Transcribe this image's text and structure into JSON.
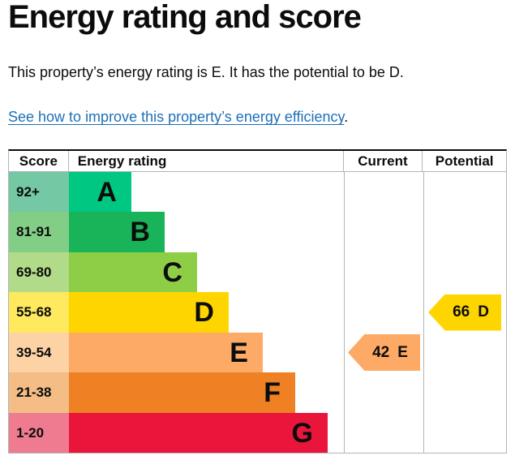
{
  "page": {
    "title": "Energy rating and score",
    "summary": "This property’s energy rating is E. It has the potential to be D.",
    "link_text": "See how to improve this property’s energy efficiency",
    "link_suffix": "."
  },
  "colors": {
    "text": "#0b0c0c",
    "link": "#1d70b8",
    "grid_line": "#b1b4b6"
  },
  "chart_data": {
    "type": "bar",
    "title": "Energy rating and score",
    "orientation": "horizontal",
    "columns": {
      "score": "Score",
      "rating": "Energy rating",
      "current": "Current",
      "potential": "Potential"
    },
    "bands": [
      {
        "score": "92+",
        "letter": "A",
        "bar_color": "#00c781",
        "score_bg": "#74c8a3",
        "bar_width_pct": 22.7
      },
      {
        "score": "81-91",
        "letter": "B",
        "bar_color": "#19b459",
        "score_bg": "#83ce86",
        "bar_width_pct": 34.8
      },
      {
        "score": "69-80",
        "letter": "C",
        "bar_color": "#8dce46",
        "score_bg": "#b1db89",
        "bar_width_pct": 46.6
      },
      {
        "score": "55-68",
        "letter": "D",
        "bar_color": "#ffd500",
        "score_bg": "#ffe95e",
        "bar_width_pct": 58.1
      },
      {
        "score": "39-54",
        "letter": "E",
        "bar_color": "#fcaa65",
        "score_bg": "#fdd2a5",
        "bar_width_pct": 70.5
      },
      {
        "score": "21-38",
        "letter": "F",
        "bar_color": "#ef8023",
        "score_bg": "#f4bd85",
        "bar_width_pct": 82.3
      },
      {
        "score": "1-20",
        "letter": "G",
        "bar_color": "#e9153b",
        "score_bg": "#ef7b90",
        "bar_width_pct": 94.1
      }
    ],
    "current": {
      "value": "42",
      "letter": "E",
      "color": "#fcaa65",
      "band_index": 4
    },
    "potential": {
      "value": "66",
      "letter": "D",
      "color": "#ffd500",
      "band_index": 3
    }
  }
}
